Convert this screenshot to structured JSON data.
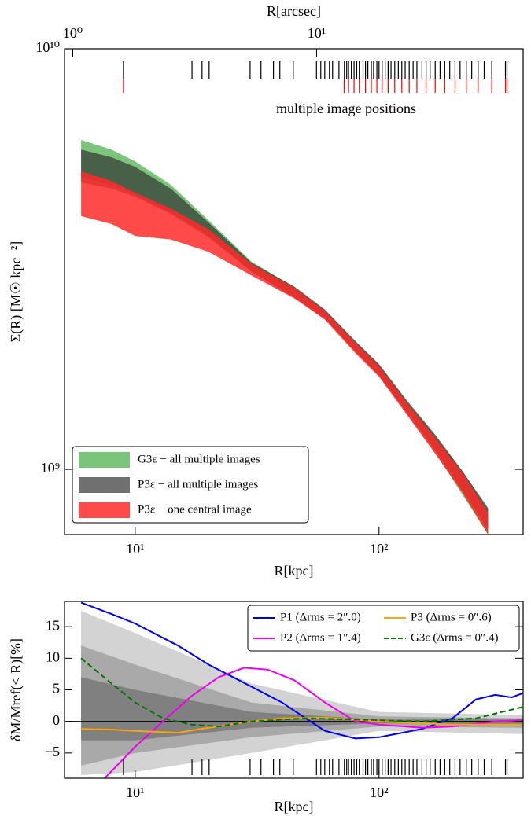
{
  "chart_data": [
    {
      "type": "band",
      "xlabel": "R[kpc]",
      "x2label": "R[arcsec]",
      "ylabel": "Σ(R) [M☉ kpc⁻²]",
      "annotation": "multiple image positions",
      "log_x": true,
      "log_y": true,
      "legend": "lower left",
      "xlim": [
        5.13,
        390
      ],
      "xticks": [
        {
          "value": 10,
          "label": "10¹"
        },
        {
          "value": 100,
          "label": "10²"
        }
      ],
      "x2lim": [
        0.925,
        70.3
      ],
      "x2ticks": [
        {
          "value": 1,
          "label": "10⁰"
        },
        {
          "value": 10,
          "label": "10¹"
        }
      ],
      "ylim": [
        700000000.0,
        10000000000.0
      ],
      "yticks": [
        {
          "value": 1000000000.0,
          "label": "10⁹"
        },
        {
          "value": 10000000000.0,
          "label": "10¹⁰"
        }
      ],
      "x": [
        6,
        8,
        10,
        14,
        20,
        30,
        45,
        60,
        80,
        100,
        130,
        170,
        220,
        280
      ],
      "series": [
        {
          "name": "G3ε − all multiple images",
          "color": "#6cbf6c",
          "opacity": 0.9,
          "upper": [
            6070000000.0,
            5760000000.0,
            5400000000.0,
            4750000000.0,
            3910000000.0,
            3120000000.0,
            2710000000.0,
            2390000000.0,
            2010000000.0,
            1770000000.0,
            1450000000.0,
            1200000000.0,
            990000000.0,
            800000000.0
          ],
          "lower": [
            4960000000.0,
            4750000000.0,
            4490000000.0,
            4090000000.0,
            3590000000.0,
            2960000000.0,
            2570000000.0,
            2290000000.0,
            1900000000.0,
            1670000000.0,
            1360000000.0,
            1100000000.0,
            870000000.0,
            700000000.0
          ]
        },
        {
          "name": "P3ε − all multiple images",
          "color": "#333333",
          "opacity": 0.7,
          "upper": [
            5760000000.0,
            5520000000.0,
            5240000000.0,
            4650000000.0,
            3860000000.0,
            3100000000.0,
            2720000000.0,
            2400000000.0,
            2020000000.0,
            1780000000.0,
            1460000000.0,
            1210000000.0,
            990000000.0,
            810000000.0
          ],
          "lower": [
            4810000000.0,
            4650000000.0,
            4450000000.0,
            4050000000.0,
            3560000000.0,
            2950000000.0,
            2560000000.0,
            2280000000.0,
            1910000000.0,
            1670000000.0,
            1370000000.0,
            1110000000.0,
            890000000.0,
            720000000.0
          ]
        },
        {
          "name": "P3ε − one central image",
          "color": "#ff2a2a",
          "opacity": 0.85,
          "upper": [
            5110000000.0,
            4850000000.0,
            4550000000.0,
            4170000000.0,
            3720000000.0,
            3080000000.0,
            2700000000.0,
            2380000000.0,
            2000000000.0,
            1760000000.0,
            1440000000.0,
            1190000000.0,
            980000000.0,
            790000000.0
          ],
          "lower": [
            4000000000.0,
            3830000000.0,
            3590000000.0,
            3520000000.0,
            3290000000.0,
            2890000000.0,
            2550000000.0,
            2270000000.0,
            1890000000.0,
            1660000000.0,
            1350000000.0,
            1090000000.0,
            880000000.0,
            700000000.0
          ]
        }
      ],
      "image_color": "#000000",
      "central_color": "#ff0000",
      "image_positions": [
        8.95,
        17.1,
        18.8,
        20.1,
        29.6,
        32.8,
        36.9,
        39.2,
        44.5,
        55.4,
        57.7,
        59.9,
        62.6,
        64.5,
        68.5,
        72.1,
        73.7,
        75,
        77,
        79,
        81,
        83,
        86,
        88,
        90,
        93,
        95,
        98,
        100,
        103,
        106,
        109,
        112,
        116,
        120,
        124,
        128,
        133,
        138,
        143,
        150,
        156,
        162,
        170,
        178,
        186,
        195,
        205,
        215,
        228,
        240,
        255,
        270,
        290,
        330,
        335
      ],
      "central_positions": [
        8.95,
        72,
        75,
        79,
        83,
        88,
        93,
        98,
        103,
        109,
        116,
        124,
        133,
        143,
        156,
        170,
        186,
        205,
        228,
        255,
        290,
        330,
        335
      ]
    },
    {
      "type": "line",
      "xlabel": "R[kpc]",
      "ylabel": "δM/Mref(< R)[%]",
      "log_x": true,
      "legend": "upper right",
      "xlim": [
        5.13,
        390
      ],
      "xticks": [
        {
          "value": 10,
          "label": "10¹"
        },
        {
          "value": 100,
          "label": "10²"
        }
      ],
      "ylim": [
        -9,
        19
      ],
      "yticks": [
        {
          "value": -5,
          "label": "−5"
        },
        0,
        5,
        10,
        15
      ],
      "reference_line": 0,
      "bands": [
        {
          "color": "#d3d3d3",
          "x": [
            6,
            10,
            30,
            100,
            390
          ],
          "lower": [
            -8.5,
            -8,
            -5,
            -1.5,
            -2
          ],
          "upper": [
            17.5,
            14,
            6,
            1.5,
            1
          ]
        },
        {
          "color": "#a9a9a9",
          "x": [
            6,
            10,
            30,
            100,
            390
          ],
          "lower": [
            -7,
            -5,
            -2.5,
            -0.8,
            -1
          ],
          "upper": [
            12,
            9,
            3,
            0.8,
            0.5
          ]
        },
        {
          "color": "#808080",
          "x": [
            6,
            10,
            30,
            100,
            390
          ],
          "lower": [
            -3,
            -3,
            -1,
            -0.3,
            -0.5
          ],
          "upper": [
            7,
            5,
            1.5,
            0.3,
            0.3
          ]
        }
      ],
      "series": [
        {
          "name": "P1 (Δrms = 2″.0)",
          "color": "#0000ee",
          "x": [
            6,
            8,
            10,
            15,
            20,
            30,
            40,
            50,
            60,
            80,
            100,
            150,
            200,
            250,
            300,
            350,
            390
          ],
          "values": [
            18.8,
            17,
            15.5,
            12,
            9,
            5.5,
            3,
            0.5,
            -1.5,
            -2.7,
            -2.5,
            -1.2,
            0.5,
            3.5,
            4.2,
            3.8,
            4.5
          ]
        },
        {
          "name": "P2 (Δrms = 1″.4)",
          "color": "#ee00ee",
          "x": [
            7.5,
            10,
            13,
            17,
            22,
            28,
            35,
            45,
            60,
            80,
            100,
            150,
            200,
            300,
            390
          ],
          "values": [
            -9,
            -4,
            0,
            4,
            7,
            8.5,
            8.2,
            6.5,
            3,
            0,
            -0.5,
            -1,
            -0.8,
            0,
            0.2
          ]
        },
        {
          "name": "P3 (Δrms = 0″.6)",
          "color": "#ffa500",
          "x": [
            6,
            8,
            10,
            15,
            20,
            30,
            40,
            60,
            100,
            200,
            390
          ],
          "values": [
            -1.2,
            -1.3,
            -1.5,
            -1.8,
            -1,
            0,
            0.5,
            0.6,
            0,
            -0.5,
            -0.5
          ]
        },
        {
          "name": "G3ε (Δrms = 0″.4)",
          "color": "#007700",
          "dash": true,
          "x": [
            6,
            8,
            10,
            13,
            17,
            22,
            30,
            50,
            80,
            150,
            250,
            390
          ],
          "values": [
            10,
            6,
            3,
            0.5,
            -0.5,
            -0.8,
            0,
            0.5,
            0.3,
            0,
            0.5,
            2.3
          ]
        }
      ],
      "image_color": "#000000",
      "image_positions": [
        8.95,
        17.1,
        18.8,
        20.1,
        29.6,
        32.8,
        36.9,
        39.2,
        44.5,
        55.4,
        57.7,
        59.9,
        62.6,
        64.5,
        68.5,
        72.1,
        73.7,
        75,
        77,
        79,
        81,
        83,
        86,
        88,
        90,
        93,
        95,
        98,
        100,
        103,
        106,
        109,
        112,
        116,
        120,
        124,
        128,
        133,
        138,
        143,
        150,
        156,
        162,
        170,
        178,
        186,
        195,
        205,
        215,
        228,
        240,
        255,
        270,
        290,
        330,
        335
      ]
    }
  ]
}
